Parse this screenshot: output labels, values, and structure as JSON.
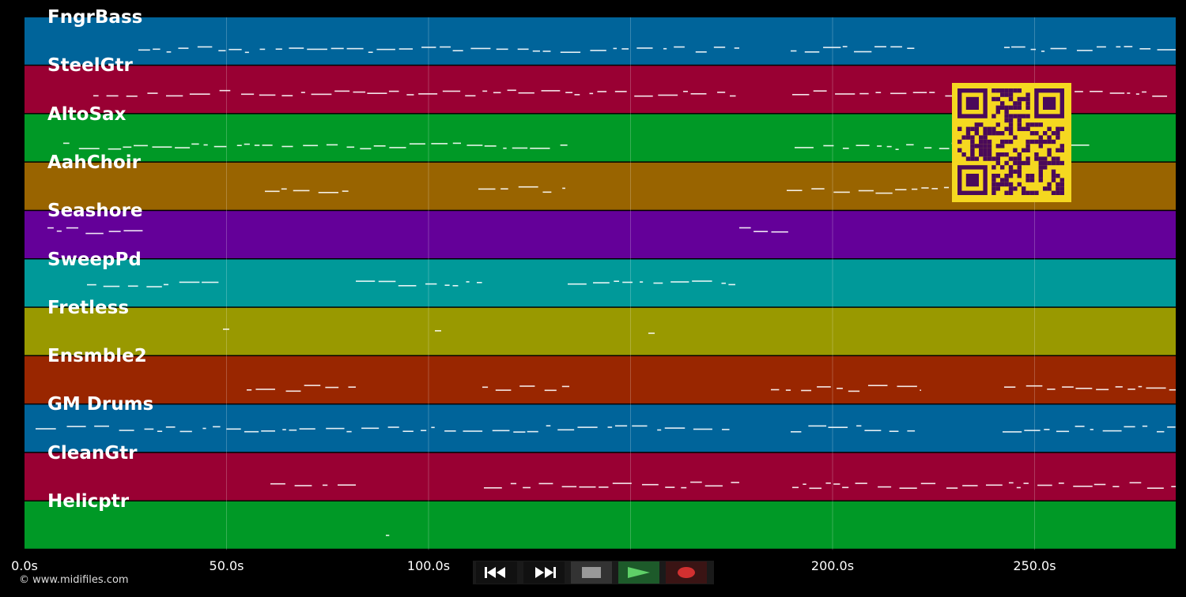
{
  "timeline": {
    "lanes": [
      {
        "label": "FngrBass",
        "color": "#00649a"
      },
      {
        "label": "SteelGtr",
        "color": "#990033"
      },
      {
        "label": "AltoSax",
        "color": "#009926"
      },
      {
        "label": "AahChoir",
        "color": "#996400"
      },
      {
        "label": "Seashore",
        "color": "#640099"
      },
      {
        "label": "SweepPd",
        "color": "#009999"
      },
      {
        "label": "Fretless",
        "color": "#999900"
      },
      {
        "label": "Ensmble2",
        "color": "#992600"
      },
      {
        "label": "GM Drums",
        "color": "#00649a"
      },
      {
        "label": "CleanGtr",
        "color": "#990033"
      },
      {
        "label": "Helicptr",
        "color": "#009926"
      }
    ],
    "ticks": [
      "0.0s",
      "50.0s",
      "100.0s",
      "150.0s",
      "200.0s",
      "250.0s"
    ],
    "note_color": "#ffffff",
    "grid_color": "#ffffff"
  },
  "transport": {
    "rewind_icon": "rewind-icon",
    "forward_icon": "fast-forward-icon",
    "stop_icon": "stop-icon",
    "play_icon": "play-icon",
    "record_icon": "record-icon",
    "play_color": "#5fd068",
    "record_color": "#d13030",
    "stop_color": "#999999"
  },
  "copyright": "© www.midifiles.com",
  "qr": {
    "fg": "#4a0a5a",
    "bg": "#f5d820"
  }
}
